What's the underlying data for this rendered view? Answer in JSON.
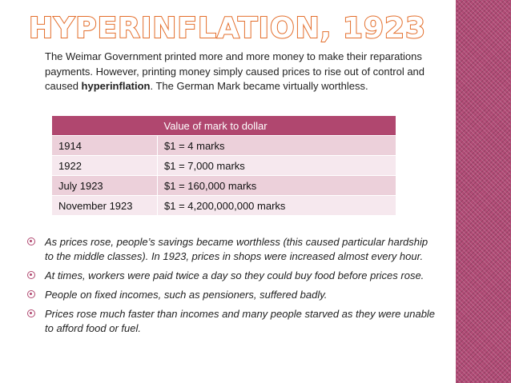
{
  "slide": {
    "title": "HYPERINFLATION, 1923",
    "intro": {
      "part1": "The Weimar Government printed more and more money to make their reparations payments. However, printing money simply caused prices to rise out of control and caused ",
      "bold": "hyperinflation",
      "part2": ". The German Mark became virtually worthless."
    },
    "table": {
      "header": [
        "",
        "Value of mark to dollar"
      ],
      "rows": [
        [
          "1914",
          "$1 = 4 marks"
        ],
        [
          "1922",
          "$1 = 7,000 marks"
        ],
        [
          "July 1923",
          "$1 = 160,000 marks"
        ],
        [
          "November 1923",
          "$1 = 4,200,000,000 marks"
        ]
      ]
    },
    "bullets": [
      "As prices rose, people’s savings became worthless (this caused particular hardship to the middle classes). In 1923, prices in shops were increased almost every hour.",
      "At times, workers were paid twice a day so they could buy food before prices rose.",
      "People on fixed incomes, such as pensioners, suffered badly.",
      "Prices rose much faster than incomes and many people starved as they were unable to afford food or fuel."
    ],
    "colors": {
      "accent": "#b0476f",
      "title_outline": "#e36d2a",
      "row_odd": "#ecd0da",
      "row_even": "#f6e8ee"
    }
  }
}
